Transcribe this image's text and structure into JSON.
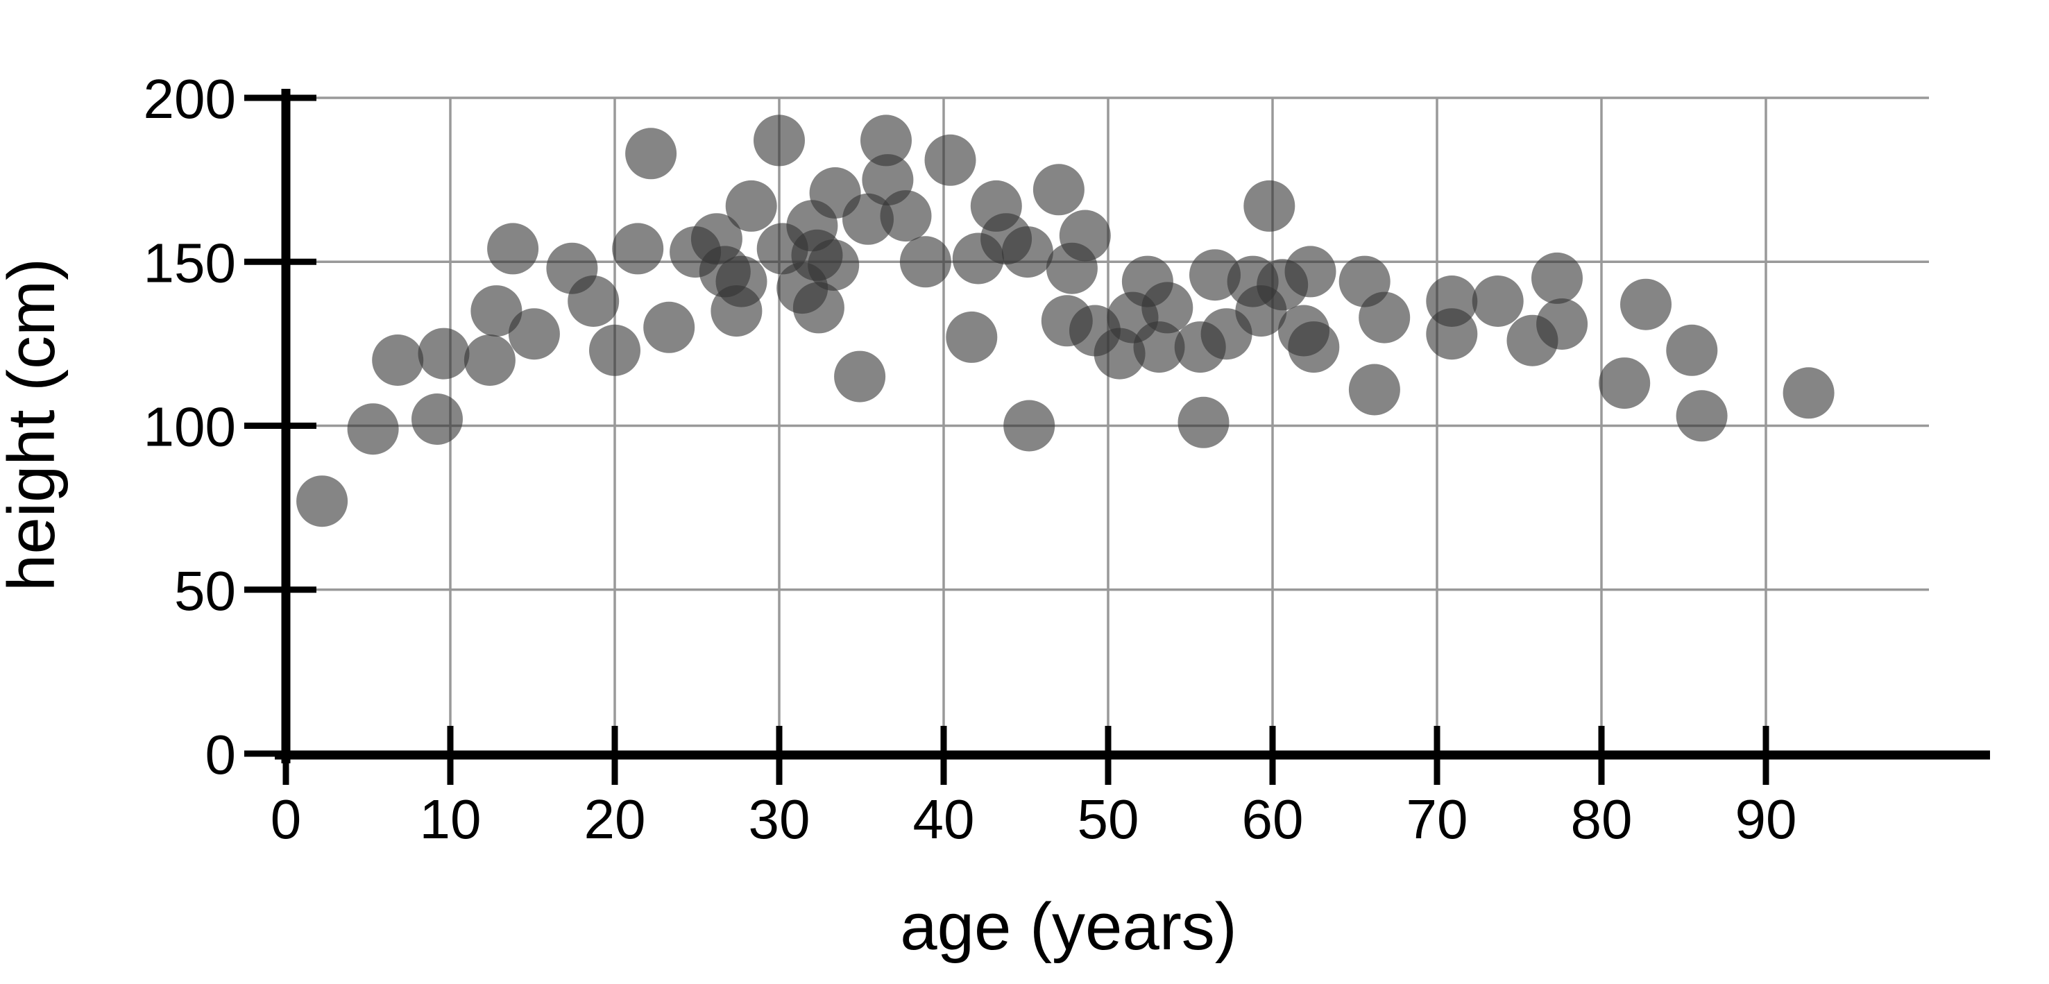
{
  "chart_data": {
    "type": "scatter",
    "title": "",
    "xlabel": "age (years)",
    "ylabel": "height (cm)",
    "xlim": [
      0,
      99.5
    ],
    "ylim": [
      0,
      200
    ],
    "xticks": [
      0,
      10,
      20,
      30,
      40,
      50,
      60,
      70,
      80,
      90
    ],
    "yticks": [
      0,
      50,
      100,
      150,
      200
    ],
    "grid": true,
    "legend_position": "none",
    "marker_color": "#333333",
    "marker_opacity": 0.6,
    "points": [
      [
        2.2,
        77
      ],
      [
        5.3,
        99
      ],
      [
        6.8,
        120
      ],
      [
        9.2,
        102
      ],
      [
        9.6,
        122
      ],
      [
        12.4,
        120
      ],
      [
        12.8,
        135
      ],
      [
        13.8,
        154
      ],
      [
        15.1,
        128
      ],
      [
        17.4,
        148
      ],
      [
        18.7,
        138
      ],
      [
        20.0,
        123
      ],
      [
        21.4,
        154
      ],
      [
        22.2,
        183
      ],
      [
        23.3,
        130
      ],
      [
        24.9,
        153
      ],
      [
        26.2,
        157
      ],
      [
        26.7,
        147
      ],
      [
        27.7,
        144
      ],
      [
        27.4,
        135
      ],
      [
        28.3,
        167
      ],
      [
        30.0,
        187
      ],
      [
        30.2,
        154
      ],
      [
        31.4,
        142
      ],
      [
        32.0,
        161
      ],
      [
        32.3,
        152
      ],
      [
        32.4,
        136
      ],
      [
        33.3,
        149
      ],
      [
        33.4,
        171
      ],
      [
        34.9,
        115
      ],
      [
        35.4,
        163
      ],
      [
        36.5,
        187
      ],
      [
        36.6,
        175
      ],
      [
        37.7,
        164
      ],
      [
        38.9,
        150
      ],
      [
        40.4,
        181
      ],
      [
        41.7,
        127
      ],
      [
        42.1,
        151
      ],
      [
        43.2,
        167
      ],
      [
        43.8,
        157
      ],
      [
        45.1,
        153
      ],
      [
        45.2,
        100
      ],
      [
        47.0,
        172
      ],
      [
        47.5,
        132
      ],
      [
        47.8,
        148
      ],
      [
        48.6,
        158
      ],
      [
        49.2,
        129
      ],
      [
        50.7,
        122
      ],
      [
        51.5,
        133
      ],
      [
        52.4,
        144
      ],
      [
        53.1,
        124
      ],
      [
        53.6,
        136
      ],
      [
        55.6,
        124
      ],
      [
        55.8,
        101
      ],
      [
        56.5,
        146
      ],
      [
        57.2,
        128
      ],
      [
        58.8,
        144
      ],
      [
        59.3,
        135
      ],
      [
        59.8,
        167
      ],
      [
        60.6,
        143
      ],
      [
        61.9,
        129
      ],
      [
        62.3,
        147
      ],
      [
        62.5,
        124
      ],
      [
        65.6,
        144
      ],
      [
        66.2,
        111
      ],
      [
        66.8,
        133
      ],
      [
        70.9,
        138
      ],
      [
        70.9,
        128
      ],
      [
        73.7,
        138
      ],
      [
        75.8,
        126
      ],
      [
        77.3,
        145
      ],
      [
        77.6,
        131
      ],
      [
        81.4,
        113
      ],
      [
        82.7,
        137
      ],
      [
        85.5,
        123
      ],
      [
        86.1,
        103
      ],
      [
        92.6,
        110
      ]
    ]
  },
  "colors": {
    "grid": "#999999",
    "axis": "#000000",
    "text": "#000000",
    "background": "#ffffff"
  }
}
